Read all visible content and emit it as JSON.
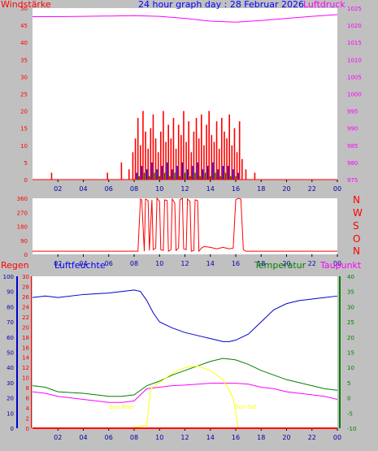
{
  "title": "24 hour graph day : 28 Februar 2026",
  "colors": {
    "bg": "#c0c0c0",
    "plot": "#ffffff",
    "red": "#ff0000",
    "magenta": "#ff00ff",
    "blue": "#0000ff",
    "green": "#008000",
    "darkgreen": "#007700",
    "navy": "#0000aa",
    "yellow": "#ffff00"
  },
  "labels": {
    "wind": "Windstärke",
    "pressure": "Luftdruck",
    "rain": "Regen",
    "humidity": "Luftfeuchte",
    "temperature": "Temperatur",
    "dewpoint": "Taupunkt",
    "sunrise": "Sun Rise",
    "sunset": "Sun Set",
    "compass": [
      "N",
      "W",
      "S",
      "O",
      "N"
    ]
  },
  "x_hours": [
    "02",
    "04",
    "06",
    "08",
    "10",
    "12",
    "14",
    "16",
    "18",
    "20",
    "22",
    "00"
  ],
  "chart_data": [
    {
      "type": "bar",
      "panel": "wind",
      "title": "24 hour graph day : 28 Februar 2026",
      "ylabel": "Windstärke",
      "ylim": [
        0,
        50
      ],
      "yticks": [
        0,
        5,
        10,
        15,
        20,
        25,
        30,
        35,
        40,
        45,
        50
      ],
      "x_unit": "hour",
      "xlim": [
        0,
        24
      ],
      "series": [
        {
          "name": "Windstärke (gust)",
          "color": "#ff0000",
          "x": [
            1.5,
            5.9,
            7.0,
            7.6,
            7.9,
            8.1,
            8.3,
            8.5,
            8.7,
            8.9,
            9.1,
            9.3,
            9.5,
            9.7,
            9.9,
            10.1,
            10.3,
            10.5,
            10.7,
            10.9,
            11.1,
            11.3,
            11.5,
            11.7,
            11.9,
            12.1,
            12.3,
            12.5,
            12.7,
            12.9,
            13.1,
            13.3,
            13.5,
            13.7,
            13.9,
            14.1,
            14.3,
            14.5,
            14.7,
            14.9,
            15.1,
            15.3,
            15.5,
            15.7,
            15.9,
            16.1,
            16.3,
            16.5,
            16.8,
            17.5
          ],
          "values": [
            2,
            2,
            5,
            3,
            8,
            12,
            18,
            10,
            20,
            14,
            9,
            15,
            19,
            12,
            8,
            14,
            20,
            11,
            16,
            12,
            18,
            9,
            16,
            13,
            20,
            11,
            17,
            8,
            14,
            18,
            12,
            19,
            10,
            16,
            20,
            13,
            11,
            17,
            9,
            18,
            14,
            12,
            19,
            10,
            15,
            8,
            17,
            6,
            3,
            2
          ]
        },
        {
          "name": "Windstärke (mean)",
          "color": "#0000ff",
          "x": [
            8.2,
            8.6,
            9.0,
            9.4,
            9.8,
            10.2,
            10.6,
            11.0,
            11.4,
            11.8,
            12.2,
            12.6,
            13.0,
            13.4,
            13.8,
            14.2,
            14.6,
            15.0,
            15.4,
            15.8,
            16.2
          ],
          "values": [
            2,
            4,
            3,
            5,
            3,
            4,
            5,
            3,
            4,
            5,
            3,
            4,
            5,
            3,
            4,
            5,
            3,
            4,
            4,
            3,
            2
          ]
        },
        {
          "name": "Windstärke (low)",
          "color": "#008000",
          "x": [
            8.4,
            8.8,
            9.2,
            9.6,
            10.0,
            10.4,
            10.8,
            11.2,
            11.6,
            12.0,
            12.4,
            12.8,
            13.2,
            13.6,
            14.0,
            14.4,
            14.8,
            15.2,
            15.6,
            16.0
          ],
          "values": [
            1,
            2,
            1,
            2,
            1,
            2,
            1,
            2,
            1,
            2,
            1,
            2,
            1,
            2,
            1,
            2,
            1,
            2,
            1,
            1
          ]
        }
      ],
      "y2label": "Luftdruck",
      "y2lim": [
        975,
        1025
      ],
      "y2ticks": [
        975,
        980,
        985,
        990,
        995,
        1000,
        1005,
        1010,
        1015,
        1020,
        1025
      ],
      "line": {
        "name": "Luftdruck",
        "color": "#ff00ff",
        "x": [
          0,
          2,
          4,
          6,
          8,
          10,
          12,
          14,
          16,
          18,
          20,
          22,
          24
        ],
        "values": [
          1022.5,
          1022.5,
          1022.6,
          1022.7,
          1022.8,
          1022.6,
          1022.0,
          1021.2,
          1020.9,
          1021.4,
          1022.0,
          1022.6,
          1023.1
        ]
      }
    },
    {
      "type": "line",
      "panel": "wind_direction",
      "ylim": [
        0,
        360
      ],
      "yticks": [
        0,
        90,
        180,
        270,
        360
      ],
      "x_unit": "hour",
      "xlim": [
        0,
        24
      ],
      "series": [
        {
          "name": "Windrichtung",
          "color": "#ff0000",
          "x": [
            0,
            8.3,
            8.5,
            8.6,
            8.8,
            8.9,
            9.1,
            9.2,
            9.4,
            9.5,
            9.7,
            9.8,
            10.0,
            10.1,
            10.3,
            10.4,
            10.6,
            10.7,
            10.9,
            11.0,
            11.2,
            11.3,
            11.5,
            11.6,
            11.8,
            11.9,
            12.1,
            12.2,
            12.4,
            12.5,
            12.7,
            12.8,
            13.0,
            13.1,
            13.3,
            13.5,
            14.0,
            14.5,
            15.0,
            15.5,
            15.8,
            16.0,
            16.2,
            16.4,
            16.6,
            16.8,
            24
          ],
          "values": [
            20,
            20,
            355,
            350,
            20,
            355,
            345,
            25,
            350,
            30,
            40,
            360,
            340,
            30,
            25,
            350,
            345,
            20,
            30,
            355,
            330,
            25,
            40,
            350,
            360,
            35,
            30,
            355,
            340,
            20,
            25,
            350,
            345,
            20,
            40,
            50,
            45,
            35,
            45,
            35,
            40,
            350,
            360,
            355,
            30,
            20,
            20
          ]
        }
      ]
    },
    {
      "type": "line",
      "panel": "climate",
      "x_unit": "hour",
      "xlim": [
        0,
        24
      ],
      "ylabel": "Luftfeuchte",
      "ylim": [
        0,
        100
      ],
      "yticks": [
        0,
        10,
        20,
        30,
        40,
        50,
        60,
        70,
        80,
        90,
        100
      ],
      "rain_ylabel": "Regen",
      "rain_ylim": [
        0,
        30
      ],
      "rain_yticks": [
        0,
        2,
        4,
        6,
        8,
        10,
        12,
        14,
        16,
        18,
        20,
        22,
        24,
        26,
        28,
        30
      ],
      "y2label": "Temperatur",
      "y2lim": [
        -10,
        40
      ],
      "y2ticks": [
        -10,
        -5,
        0,
        5,
        10,
        15,
        20,
        25,
        30,
        35,
        40
      ],
      "series": [
        {
          "name": "Luftfeuchte",
          "color": "#0000cc",
          "axis": "humidity",
          "x": [
            0,
            1,
            2,
            4,
            6,
            7,
            8,
            8.5,
            9,
            9.5,
            10,
            11,
            12,
            13,
            14,
            15,
            15.5,
            16,
            17,
            18,
            19,
            20,
            21,
            22,
            23,
            24
          ],
          "values": [
            86,
            87,
            86,
            88,
            89,
            90,
            91,
            90,
            84,
            76,
            70,
            66,
            63,
            61,
            59,
            57,
            57,
            58,
            62,
            70,
            78,
            82,
            84,
            85,
            86,
            87
          ]
        },
        {
          "name": "Temperatur",
          "color": "#008000",
          "axis": "temperature",
          "x": [
            0,
            1,
            2,
            4,
            6,
            7,
            8,
            9,
            10,
            11,
            12,
            13,
            14,
            15,
            16,
            17,
            18,
            19,
            20,
            21,
            22,
            23,
            24
          ],
          "values": [
            4,
            3.5,
            2,
            1.5,
            0.5,
            0.5,
            1,
            4,
            5.5,
            7.5,
            9,
            10.5,
            12,
            13,
            12.5,
            11,
            9,
            7.5,
            6,
            5,
            4,
            3,
            2.5
          ]
        },
        {
          "name": "Taupunkt",
          "color": "#ff00ff",
          "axis": "temperature",
          "x": [
            0,
            1,
            2,
            4,
            6,
            7,
            8,
            9,
            10,
            11,
            12,
            13,
            14,
            15,
            16,
            17,
            18,
            19,
            20,
            21,
            22,
            23,
            24
          ],
          "values": [
            2,
            1.5,
            0.5,
            -0.5,
            -1.5,
            -1.5,
            -1,
            3,
            3.5,
            4,
            4.2,
            4.5,
            4.8,
            4.8,
            4.8,
            4.5,
            3.5,
            3,
            2,
            1.5,
            1,
            0.5,
            -0.5
          ]
        },
        {
          "name": "Solar",
          "color": "#ffff00",
          "axis": "temperature",
          "x": [
            6.8,
            7.5,
            8.3,
            9.0,
            9.3,
            10.0,
            11.0,
            12.0,
            13.0,
            14.0,
            15.0,
            15.8,
            16.2,
            16.6
          ],
          "values": [
            -10,
            -10,
            -9.5,
            -9,
            3,
            5,
            8,
            10,
            10.5,
            9,
            6,
            0,
            -10,
            -10
          ]
        },
        {
          "name": "Regen",
          "color": "#ff0000",
          "axis": "rain",
          "x": [
            0,
            24
          ],
          "values": [
            0,
            0
          ]
        }
      ],
      "annotations": [
        {
          "text": "Sun Rise",
          "x": 7.0
        },
        {
          "text": "Sun Set",
          "x": 16.8
        }
      ]
    }
  ]
}
